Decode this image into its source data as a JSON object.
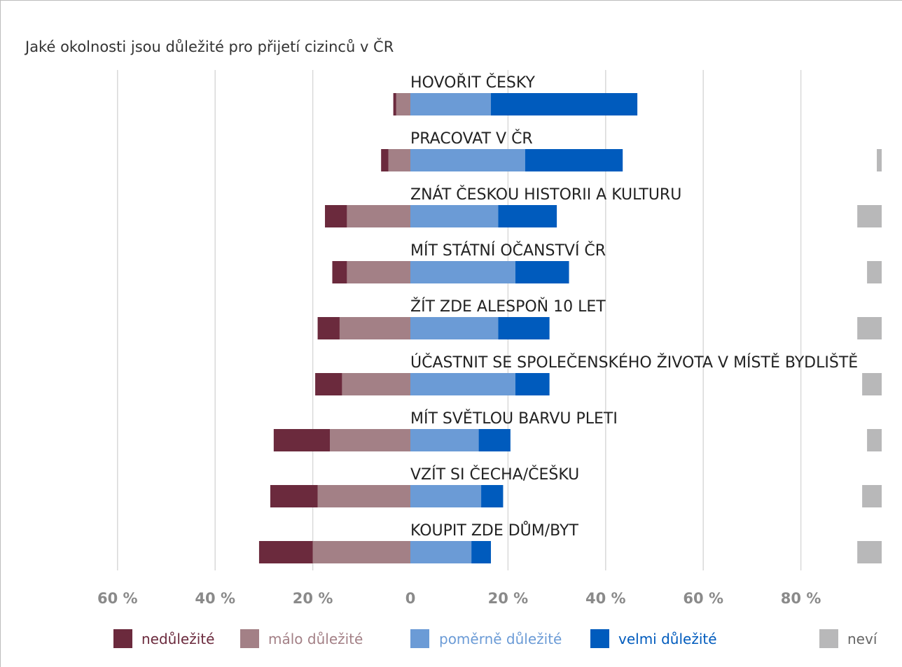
{
  "chart_data": {
    "type": "bar",
    "orientation": "horizontal",
    "stacked": "diverging",
    "title": "Jaké okolnosti jsou důležité pro přijetí cizinců v ČR",
    "categories": [
      "HOVOŘIT ČESKY",
      "PRACOVAT V ČR",
      "ZNÁT ČESKOU HISTORII A KULTURU",
      "MÍT STÁTNÍ OČANSTVÍ ČR",
      "ŽÍT ZDE ALESPOŇ 10 LET",
      "ÚČASTNIT SE SPOLEČENSKÉHO ŽIVOTA V MÍSTĚ BYDLIŠTĚ",
      "MÍT SVĚTLOU BARVU PLETI",
      "VZÍT SI ČECHA/ČEŠKU",
      "KOUPIT ZDE DŮM/BYT"
    ],
    "series": [
      {
        "name": "nedůležité",
        "side": "negative",
        "color": "#6b2a3d",
        "values": [
          0.6,
          1.5,
          4.5,
          3.0,
          4.5,
          5.5,
          11.5,
          9.7,
          11.0
        ]
      },
      {
        "name": "málo důležité",
        "side": "negative",
        "color": "#a38086",
        "values": [
          2.9,
          4.5,
          13.0,
          13.0,
          14.5,
          14.0,
          16.5,
          19.0,
          20.0
        ]
      },
      {
        "name": "poměrně důležité",
        "side": "positive",
        "color": "#6b9bd6",
        "values": [
          16.5,
          23.5,
          18.0,
          21.5,
          18.0,
          21.5,
          14.0,
          14.5,
          12.5
        ]
      },
      {
        "name": "velmi důležité",
        "side": "positive",
        "color": "#005bbd",
        "values": [
          30.0,
          20.0,
          12.0,
          11.0,
          10.5,
          7.0,
          6.5,
          4.5,
          4.0
        ]
      },
      {
        "name": "neví",
        "side": "separate",
        "color": "#b8b8b9",
        "values": [
          0.0,
          0.5,
          2.5,
          1.5,
          2.5,
          2.0,
          1.5,
          2.0,
          2.5
        ]
      }
    ],
    "xaxis": {
      "ticks": [
        -60,
        -40,
        -20,
        0,
        20,
        40,
        60,
        80
      ],
      "tick_labels": [
        "60 %",
        "40 %",
        "20 %",
        "0",
        "20 %",
        "40 %",
        "60 %",
        "80 %"
      ]
    },
    "grid": true,
    "legend_position": "bottom"
  }
}
